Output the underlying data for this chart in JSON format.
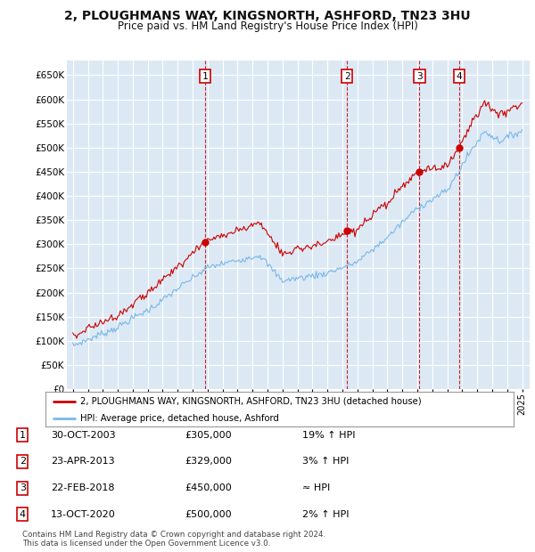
{
  "title": "2, PLOUGHMANS WAY, KINGSNORTH, ASHFORD, TN23 3HU",
  "subtitle": "Price paid vs. HM Land Registry's House Price Index (HPI)",
  "background_color": "#ffffff",
  "plot_bg_color": "#dce9f5",
  "grid_color": "#ffffff",
  "hpi_color": "#7ab8e8",
  "price_color": "#cc0000",
  "vline_color": "#cc0000",
  "ylim": [
    0,
    680000
  ],
  "yticks": [
    0,
    50000,
    100000,
    150000,
    200000,
    250000,
    300000,
    350000,
    400000,
    450000,
    500000,
    550000,
    600000,
    650000
  ],
  "sales": [
    {
      "label": "1",
      "year": 2003.83,
      "price": 305000
    },
    {
      "label": "2",
      "year": 2013.31,
      "price": 329000
    },
    {
      "label": "3",
      "year": 2018.14,
      "price": 450000
    },
    {
      "label": "4",
      "year": 2020.78,
      "price": 500000
    }
  ],
  "table_rows": [
    {
      "num": "1",
      "date": "30-OCT-2003",
      "price": "£305,000",
      "note": "19% ↑ HPI"
    },
    {
      "num": "2",
      "date": "23-APR-2013",
      "price": "£329,000",
      "note": "3% ↑ HPI"
    },
    {
      "num": "3",
      "date": "22-FEB-2018",
      "price": "£450,000",
      "note": "≈ HPI"
    },
    {
      "num": "4",
      "date": "13-OCT-2020",
      "price": "£500,000",
      "note": "2% ↑ HPI"
    }
  ],
  "legend_line1": "2, PLOUGHMANS WAY, KINGSNORTH, ASHFORD, TN23 3HU (detached house)",
  "legend_line2": "HPI: Average price, detached house, Ashford",
  "footer": "Contains HM Land Registry data © Crown copyright and database right 2024.\nThis data is licensed under the Open Government Licence v3.0."
}
